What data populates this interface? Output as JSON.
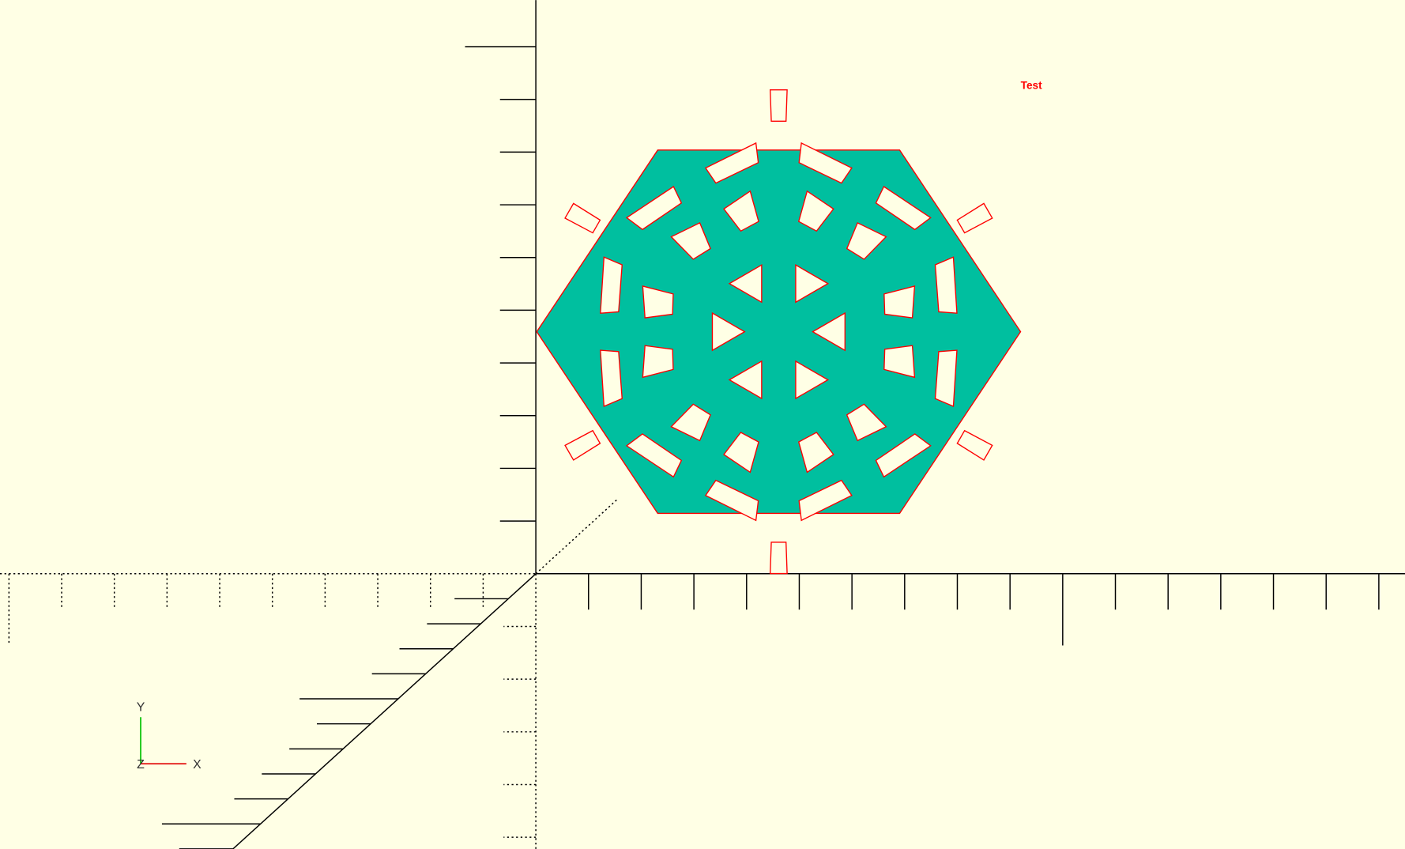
{
  "label": "Test",
  "axis_labels": {
    "x": "X",
    "y": "Y",
    "z": "Z"
  }
}
